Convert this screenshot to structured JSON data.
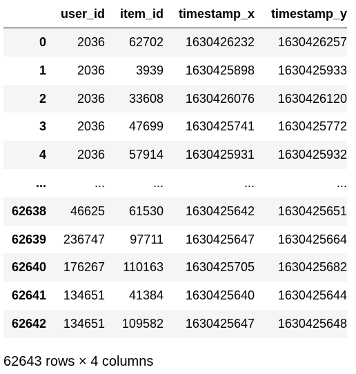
{
  "table": {
    "columns": [
      "",
      "user_id",
      "item_id",
      "timestamp_x",
      "timestamp_y"
    ],
    "rows": [
      [
        "0",
        "2036",
        "62702",
        "1630426232",
        "1630426257"
      ],
      [
        "1",
        "2036",
        "3939",
        "1630425898",
        "1630425933"
      ],
      [
        "2",
        "2036",
        "33608",
        "1630426076",
        "1630426120"
      ],
      [
        "3",
        "2036",
        "47699",
        "1630425741",
        "1630425772"
      ],
      [
        "4",
        "2036",
        "57914",
        "1630425931",
        "1630425932"
      ],
      [
        "...",
        "...",
        "...",
        "...",
        "..."
      ],
      [
        "62638",
        "46625",
        "61530",
        "1630425642",
        "1630425651"
      ],
      [
        "62639",
        "236747",
        "97711",
        "1630425647",
        "1630425664"
      ],
      [
        "62640",
        "176267",
        "110163",
        "1630425705",
        "1630425682"
      ],
      [
        "62641",
        "134651",
        "41384",
        "1630425640",
        "1630425644"
      ],
      [
        "62642",
        "134651",
        "109582",
        "1630425647",
        "1630425648"
      ]
    ]
  },
  "shape_text": "62643 rows × 4 columns"
}
